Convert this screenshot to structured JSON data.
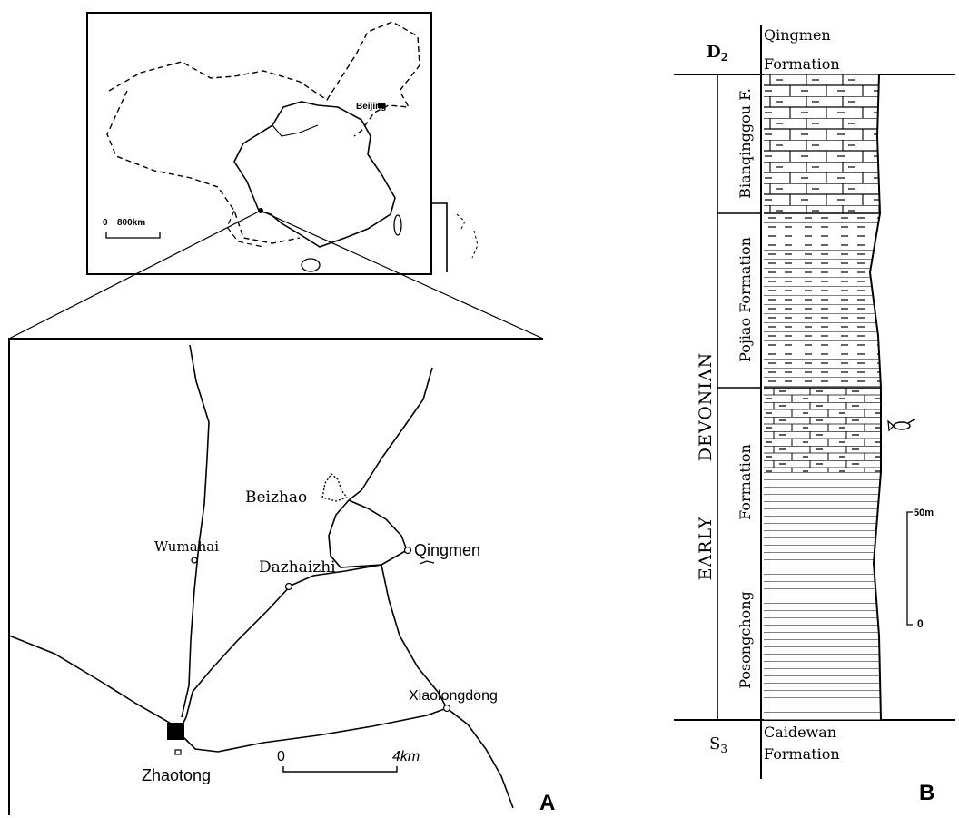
{
  "panel_a": {
    "label": "A",
    "inset": {
      "city": "Beijing",
      "scale_zero": "0",
      "scale_value": "800km"
    },
    "localities": {
      "beizhao": "Beizhao",
      "wumahai": "Wumahai",
      "dazhaizhi": "Dazhaizhi",
      "qingmen": "Qingmen",
      "xiaolongdong": "Xiaolongdong",
      "zhaotong": "Zhaotong"
    },
    "scale": {
      "zero": "0",
      "value": "4km"
    }
  },
  "panel_b": {
    "label": "B",
    "top_age": "D",
    "top_age_sub": "2",
    "top_formation_line1": "Qingmen",
    "top_formation_line2": "Formation",
    "bottom_age": "S",
    "bottom_age_sub": "3",
    "bottom_formation_line1": "Caidewan",
    "bottom_formation_line2": "Formation",
    "period": "DEVONIAN",
    "epoch": "EARLY",
    "units": {
      "bianqinggou": "Bianqinggou F.",
      "pojiao": "Pojiao Formation",
      "posongchong_1": "Posongchong",
      "posongchong_2": "Formation"
    },
    "scale": {
      "top": "50m",
      "bottom": "0"
    }
  }
}
